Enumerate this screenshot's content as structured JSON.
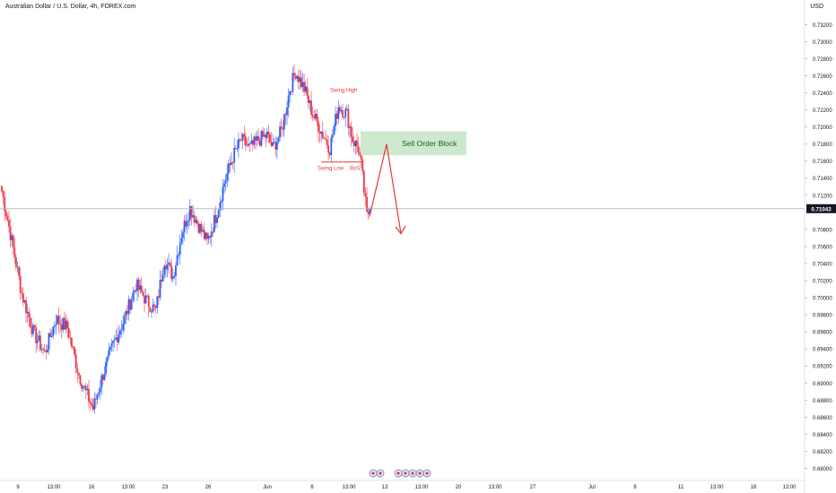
{
  "header": {
    "title": "Australian Dollar / U.S. Dollar, 4h, FOREX.com",
    "currency": "USD"
  },
  "chart_data": {
    "type": "candlestick",
    "title": "Australian Dollar / U.S. Dollar, 4h, FOREX.com",
    "ylim": [
      0.6788,
      0.7332
    ],
    "y_ticks": [
      0.732,
      0.73,
      0.728,
      0.726,
      0.724,
      0.722,
      0.72,
      0.718,
      0.716,
      0.714,
      0.712,
      0.708,
      0.706,
      0.704,
      0.702,
      0.7,
      0.698,
      0.696,
      0.694,
      0.692,
      0.69,
      0.688,
      0.686,
      0.684,
      0.682,
      0.68
    ],
    "y_tick_labels": [
      "0.73200",
      "0.73000",
      "0.72800",
      "0.72600",
      "0.72400",
      "0.72200",
      "0.72000",
      "0.71800",
      "0.71600",
      "0.71400",
      "0.71200",
      "0.70800",
      "0.70600",
      "0.70400",
      "0.70200",
      "0.70000",
      "0.69800",
      "0.69600",
      "0.69400",
      "0.69200",
      "0.69000",
      "0.68800",
      "0.68600",
      "0.68400",
      "0.68200",
      "0.68000"
    ],
    "x_tick_labels": [
      "9",
      "13:00",
      "16",
      "13:00",
      "23",
      "26",
      "Jun",
      "6",
      "13:00",
      "13",
      "13:00",
      "20",
      "13:00",
      "27",
      "Jul",
      "6",
      "11",
      "13:00",
      "18",
      "13:00"
    ],
    "current_price": 0.71043,
    "current_price_label": "0.71043",
    "colors": {
      "up": "#2962ff",
      "down": "#f23645",
      "price_line": "#b2b5be",
      "zone": "#c8e6c9",
      "annotation": "#e53935"
    },
    "anchors": [
      {
        "i": 0,
        "p": 0.7125
      },
      {
        "i": 6,
        "p": 0.7075
      },
      {
        "i": 14,
        "p": 0.7005
      },
      {
        "i": 22,
        "p": 0.696
      },
      {
        "i": 30,
        "p": 0.6935
      },
      {
        "i": 38,
        "p": 0.6975
      },
      {
        "i": 46,
        "p": 0.6965
      },
      {
        "i": 54,
        "p": 0.691
      },
      {
        "i": 60,
        "p": 0.6885
      },
      {
        "i": 64,
        "p": 0.687
      },
      {
        "i": 70,
        "p": 0.6905
      },
      {
        "i": 78,
        "p": 0.6945
      },
      {
        "i": 86,
        "p": 0.6975
      },
      {
        "i": 94,
        "p": 0.7015
      },
      {
        "i": 102,
        "p": 0.6995
      },
      {
        "i": 108,
        "p": 0.6985
      },
      {
        "i": 114,
        "p": 0.7045
      },
      {
        "i": 120,
        "p": 0.7025
      },
      {
        "i": 126,
        "p": 0.7075
      },
      {
        "i": 132,
        "p": 0.7105
      },
      {
        "i": 138,
        "p": 0.7085
      },
      {
        "i": 144,
        "p": 0.7065
      },
      {
        "i": 150,
        "p": 0.7095
      },
      {
        "i": 156,
        "p": 0.7135
      },
      {
        "i": 162,
        "p": 0.7165
      },
      {
        "i": 168,
        "p": 0.7185
      },
      {
        "i": 174,
        "p": 0.7175
      },
      {
        "i": 180,
        "p": 0.7185
      },
      {
        "i": 186,
        "p": 0.719
      },
      {
        "i": 190,
        "p": 0.7175
      },
      {
        "i": 196,
        "p": 0.7195
      },
      {
        "i": 202,
        "p": 0.7245
      },
      {
        "i": 206,
        "p": 0.7265
      },
      {
        "i": 212,
        "p": 0.7245
      },
      {
        "i": 218,
        "p": 0.7215
      },
      {
        "i": 224,
        "p": 0.7195
      },
      {
        "i": 230,
        "p": 0.7175
      },
      {
        "i": 236,
        "p": 0.7225
      },
      {
        "i": 242,
        "p": 0.7215
      },
      {
        "i": 246,
        "p": 0.7185
      },
      {
        "i": 250,
        "p": 0.7175
      },
      {
        "i": 252,
        "p": 0.7155
      },
      {
        "i": 254,
        "p": 0.7125
      },
      {
        "i": 256,
        "p": 0.7095
      },
      {
        "i": 258,
        "p": 0.7104
      }
    ],
    "annotations": {
      "swing_high": "Swing High",
      "swing_low": "Swing Low",
      "bos": "BoS",
      "order_block": "Sell Order Block"
    }
  }
}
